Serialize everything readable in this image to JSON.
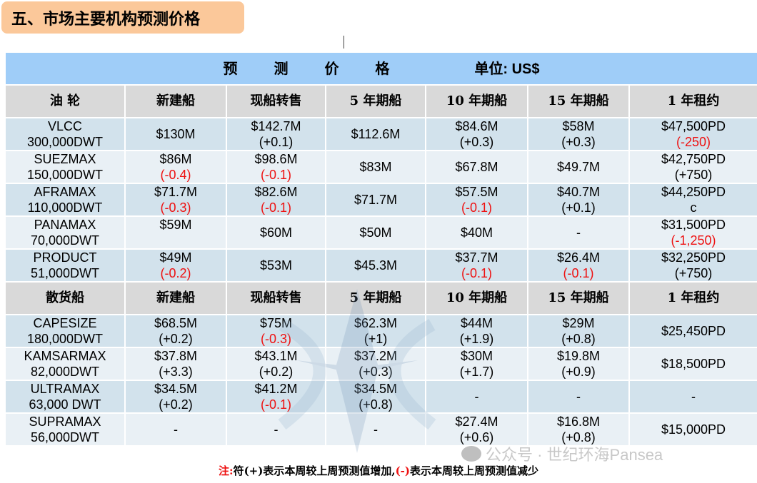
{
  "title": "五、市场主要机构预测价格",
  "caption": {
    "title": "预 测 价 格",
    "unit": "单位: US$"
  },
  "headers": {
    "tanker": [
      "油 轮",
      "新建船",
      "现船转售",
      "5 年期船",
      "10 年期船",
      "15 年期船",
      "1 年租约"
    ],
    "bulk": [
      "散货船",
      "新建船",
      "现船转售",
      "5 年期船",
      "10 年期船",
      "15 年期船",
      "1 年租约"
    ]
  },
  "tankers": [
    {
      "name": "VLCC",
      "size": "300,000DWT",
      "cells": [
        {
          "v": "$130M",
          "c": "",
          "neg": false
        },
        {
          "v": "$142.7M",
          "c": "(+0.1)",
          "neg": false
        },
        {
          "v": "$112.6M",
          "c": "",
          "neg": false
        },
        {
          "v": "$84.6M",
          "c": "(+0.3)",
          "neg": false
        },
        {
          "v": "$58M",
          "c": "(+0.3)",
          "neg": false
        },
        {
          "v": "$47,500PD",
          "c": "(-250)",
          "neg": true
        }
      ]
    },
    {
      "name": "SUEZMAX",
      "size": "150,000DWT",
      "cells": [
        {
          "v": "$86M",
          "c": "(-0.4)",
          "neg": true
        },
        {
          "v": "$98.6M",
          "c": "(-0.1)",
          "neg": true
        },
        {
          "v": "$83M",
          "c": "",
          "neg": false
        },
        {
          "v": "$67.8M",
          "c": "",
          "neg": false
        },
        {
          "v": "$49.7M",
          "c": "",
          "neg": false
        },
        {
          "v": "$42,750PD",
          "c": "(+750)",
          "neg": false
        }
      ]
    },
    {
      "name": "AFRAMAX",
      "size": "110,000DWT",
      "cells": [
        {
          "v": "$71.7M",
          "c": "(-0.3)",
          "neg": true
        },
        {
          "v": "$82.6M",
          "c": "(-0.1)",
          "neg": true
        },
        {
          "v": "$71.7M",
          "c": "",
          "neg": false
        },
        {
          "v": "$57.5M",
          "c": "(-0.1)",
          "neg": true
        },
        {
          "v": "$40.7M",
          "c": "(+0.1)",
          "neg": false
        },
        {
          "v": "$44,250PD",
          "c": "c",
          "neg": false
        }
      ]
    },
    {
      "name": "PANAMAX",
      "size": "70,000DWT",
      "cells": [
        {
          "v": "$59M",
          "c": " ",
          "neg": false
        },
        {
          "v": "$60M",
          "c": "",
          "neg": false
        },
        {
          "v": "$50M",
          "c": "",
          "neg": false
        },
        {
          "v": "$40M",
          "c": "",
          "neg": false
        },
        {
          "v": "-",
          "c": "",
          "neg": false
        },
        {
          "v": "$31,500PD",
          "c": "(-1,250)",
          "neg": true
        }
      ]
    },
    {
      "name": "PRODUCT",
      "size": "51,000DWT",
      "cells": [
        {
          "v": "$49M",
          "c": "(-0.2)",
          "neg": true
        },
        {
          "v": "$53M",
          "c": "",
          "neg": false
        },
        {
          "v": "$45.3M",
          "c": "",
          "neg": false
        },
        {
          "v": "$37.7M",
          "c": "(-0.1)",
          "neg": true
        },
        {
          "v": "$26.4M",
          "c": "(-0.1)",
          "neg": true
        },
        {
          "v": "$32,250PD",
          "c": "(+750)",
          "neg": false
        }
      ]
    }
  ],
  "bulkers": [
    {
      "name": "CAPESIZE",
      "size": "180,000DWT",
      "cells": [
        {
          "v": "$68.5M",
          "c": "(+0.2)",
          "neg": false
        },
        {
          "v": "$75M",
          "c": "(-0.3)",
          "neg": true
        },
        {
          "v": "$62.3M",
          "c": "(+1)",
          "neg": false
        },
        {
          "v": "$44M",
          "c": "(+1.9)",
          "neg": false
        },
        {
          "v": "$29M",
          "c": "(+0.8)",
          "neg": false
        },
        {
          "v": "$25,450PD",
          "c": "",
          "neg": false
        }
      ]
    },
    {
      "name": "KAMSARMAX",
      "size": "82,000DWT",
      "cells": [
        {
          "v": "$37.8M",
          "c": "(+3.3)",
          "neg": false
        },
        {
          "v": "$43.1M",
          "c": "(+0.2)",
          "neg": false
        },
        {
          "v": "$37.2M",
          "c": "(+0.3)",
          "neg": false
        },
        {
          "v": "$30M",
          "c": "(+1.7)",
          "neg": false
        },
        {
          "v": "$19.8M",
          "c": "(+0.9)",
          "neg": false
        },
        {
          "v": "$18,500PD",
          "c": "",
          "neg": false
        }
      ]
    },
    {
      "name": "ULTRAMAX",
      "size": "63,000 DWT",
      "cells": [
        {
          "v": "$34.5M",
          "c": "(+0.2)",
          "neg": false
        },
        {
          "v": "$41.2M",
          "c": "(-0.1)",
          "neg": true
        },
        {
          "v": "$34.5M",
          "c": "(+0.8)",
          "neg": false
        },
        {
          "v": "-",
          "c": "",
          "neg": false
        },
        {
          "v": "-",
          "c": "",
          "neg": false
        },
        {
          "v": "-",
          "c": "",
          "neg": false
        }
      ]
    },
    {
      "name": "SUPRAMAX",
      "size": "56,000DWT",
      "cells": [
        {
          "v": "-",
          "c": "",
          "neg": false
        },
        {
          "v": "-",
          "c": "",
          "neg": false
        },
        {
          "v": "-",
          "c": "",
          "neg": false
        },
        {
          "v": "$27.4M",
          "c": "(+0.6)",
          "neg": false
        },
        {
          "v": "$16.8M",
          "c": "(+0.8)",
          "neg": false
        },
        {
          "v": "$15,000PD",
          "c": "",
          "neg": false
        }
      ]
    }
  ],
  "note": {
    "prefix": "注:",
    "part1": "符",
    "plus": "(+)",
    "part2": "表示本周较上周预测值增加,",
    "minus": "(-)",
    "part3": "表示本周较上周预测值减少"
  },
  "watermark": {
    "label": "公众号 · 世纪环海Pansea"
  },
  "colors": {
    "title_bg": "#fbc89a",
    "caption_bg": "#9fcdf8",
    "header_bg": "#d9d9d9",
    "row_dark": "#d2e2ec",
    "row_light": "#e9f0f5",
    "negative": "#ee1111"
  }
}
